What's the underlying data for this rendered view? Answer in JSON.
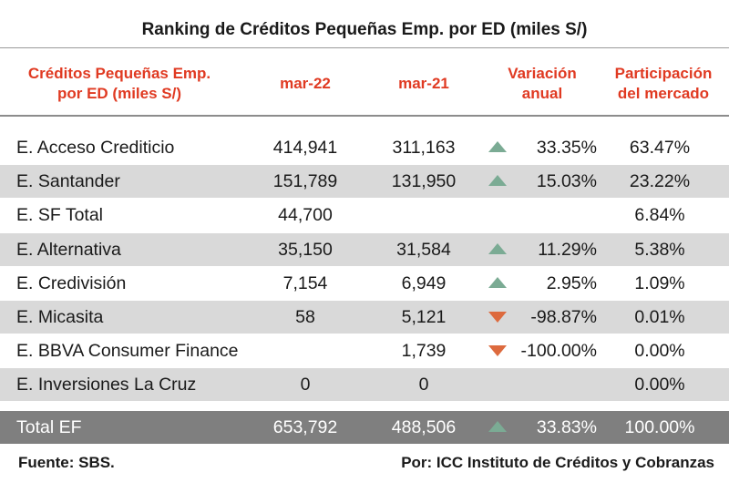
{
  "title": "Ranking de Créditos Pequeñas Emp. por ED (miles S/)",
  "colors": {
    "header_text": "#e03a22",
    "up_arrow": "#7bab94",
    "down_arrow": "#dd6a3e",
    "row_shade": "#d9d9d9",
    "total_bg": "#7f7f7f"
  },
  "header": {
    "name_line1": "Créditos Pequeñas Emp.",
    "name_line2": "por ED (miles S/)",
    "mar22": "mar-22",
    "mar21": "mar-21",
    "var_line1": "Variación",
    "var_line2": "anual",
    "part_line1": "Participación",
    "part_line2": "del mercado"
  },
  "rows": [
    {
      "name": "E. Acceso Crediticio",
      "mar22": "414,941",
      "mar21": "311,163",
      "trend": "up",
      "variation": "33.35%",
      "share": "63.47%"
    },
    {
      "name": "E. Santander",
      "mar22": "151,789",
      "mar21": "131,950",
      "trend": "up",
      "variation": "15.03%",
      "share": "23.22%"
    },
    {
      "name": "E. SF Total",
      "mar22": "44,700",
      "mar21": "",
      "trend": "none",
      "variation": "",
      "share": "6.84%"
    },
    {
      "name": "E. Alternativa",
      "mar22": "35,150",
      "mar21": "31,584",
      "trend": "up",
      "variation": "11.29%",
      "share": "5.38%"
    },
    {
      "name": "E. Credivisión",
      "mar22": "7,154",
      "mar21": "6,949",
      "trend": "up",
      "variation": "2.95%",
      "share": "1.09%"
    },
    {
      "name": "E. Micasita",
      "mar22": "58",
      "mar21": "5,121",
      "trend": "down",
      "variation": "-98.87%",
      "share": "0.01%"
    },
    {
      "name": "E. BBVA Consumer Finance",
      "mar22": "",
      "mar21": "1,739",
      "trend": "down",
      "variation": "-100.00%",
      "share": "0.00%"
    },
    {
      "name": "E. Inversiones La Cruz",
      "mar22": "0",
      "mar21": "0",
      "trend": "none",
      "variation": "",
      "share": "0.00%"
    }
  ],
  "total": {
    "name": "Total EF",
    "mar22": "653,792",
    "mar21": "488,506",
    "trend": "up",
    "variation": "33.83%",
    "share": "100.00%"
  },
  "footer": {
    "source": "Fuente: SBS.",
    "author": "Por: ICC Instituto de Créditos y Cobranzas"
  }
}
